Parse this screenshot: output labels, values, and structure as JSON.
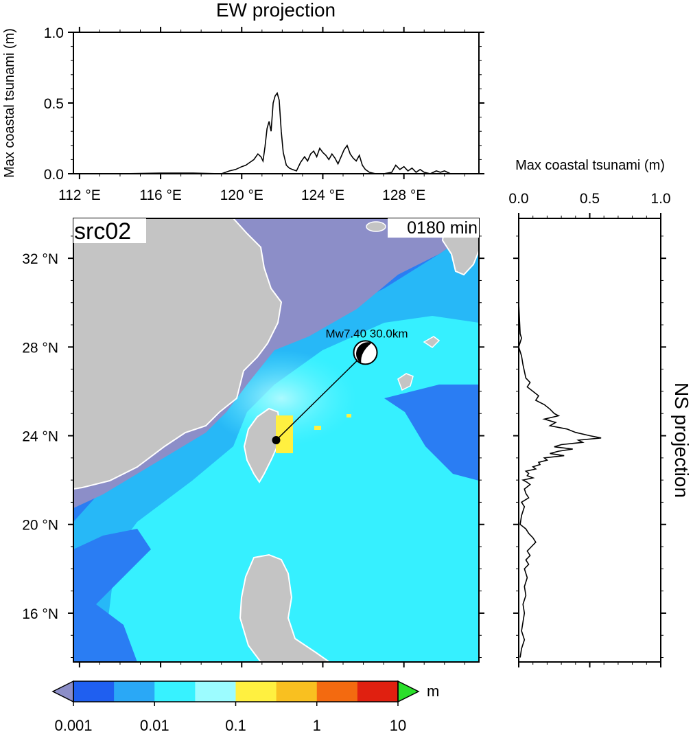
{
  "source_label": "src02",
  "time_label": "0180 min",
  "colorbar": {
    "unit": "m",
    "tick_labels": [
      "0.001",
      "0.01",
      "0.1",
      "1",
      "10"
    ],
    "colors": [
      "#1f5ff0",
      "#2aa8f6",
      "#37f2ff",
      "#9cfcff",
      "#fff040",
      "#f9c020",
      "#f36a10",
      "#e02010"
    ],
    "under_color": "#8c8ec8",
    "over_color": "#2adf2a"
  },
  "event": {
    "label": "Mw7.40  30.0km",
    "epicenter_lon": 121.7,
    "epicenter_lat": 23.8,
    "beachball_lon": 126.1,
    "beachball_lat": 27.75
  },
  "chart_data": [
    {
      "type": "line",
      "title": "EW projection",
      "ylabel": "Max coastal tsunami (m)",
      "xlim": [
        111.7,
        131.7
      ],
      "ylim": [
        0,
        1.0
      ],
      "x_ticks": [
        112,
        116,
        120,
        124,
        128
      ],
      "x_tick_labels": [
        "112 °E",
        "116 °E",
        "120 °E",
        "124 °E",
        "128 °E"
      ],
      "y_ticks": [
        0,
        0.5,
        1.0
      ],
      "y_tick_labels": [
        "0.0",
        "0.5",
        "1.0"
      ],
      "x": [
        111.8,
        114.0,
        116.0,
        117.6,
        119.0,
        119.4,
        119.7,
        120.0,
        120.2,
        120.4,
        120.6,
        120.8,
        120.95,
        121.05,
        121.15,
        121.25,
        121.35,
        121.45,
        121.55,
        121.65,
        121.75,
        121.85,
        121.95,
        122.05,
        122.2,
        122.35,
        122.5,
        122.7,
        122.9,
        123.0,
        123.1,
        123.25,
        123.4,
        123.55,
        123.7,
        123.85,
        124.0,
        124.15,
        124.3,
        124.45,
        124.6,
        124.75,
        124.9,
        125.05,
        125.2,
        125.35,
        125.5,
        125.65,
        125.8,
        125.95,
        126.1,
        126.3,
        126.6,
        127.0,
        127.4,
        127.6,
        127.8,
        128.0,
        128.2,
        128.4,
        128.6,
        128.8,
        129.0,
        129.3,
        129.6,
        129.8,
        130.0,
        130.3,
        130.7,
        131.2
      ],
      "y": [
        0.0,
        0.0,
        0.005,
        0.005,
        0.0,
        0.02,
        0.03,
        0.05,
        0.06,
        0.08,
        0.1,
        0.14,
        0.12,
        0.09,
        0.19,
        0.32,
        0.37,
        0.3,
        0.5,
        0.55,
        0.57,
        0.52,
        0.3,
        0.15,
        0.06,
        0.04,
        0.03,
        0.02,
        0.08,
        0.1,
        0.12,
        0.09,
        0.14,
        0.16,
        0.12,
        0.18,
        0.15,
        0.13,
        0.1,
        0.14,
        0.11,
        0.07,
        0.12,
        0.17,
        0.2,
        0.14,
        0.11,
        0.09,
        0.13,
        0.06,
        0.03,
        0.01,
        0.0,
        0.0,
        0.01,
        0.06,
        0.03,
        0.05,
        0.02,
        0.04,
        0.01,
        0.03,
        0.01,
        0.0,
        0.02,
        0.01,
        0.02,
        0.0,
        0.0,
        0.0
      ]
    },
    {
      "type": "line",
      "title": "NS projection",
      "xlabel": "Max coastal tsunami (m)",
      "xlim": [
        0,
        1.0
      ],
      "ylim": [
        13.8,
        33.8
      ],
      "x_ticks": [
        0,
        0.5,
        1.0
      ],
      "x_tick_labels": [
        "0.0",
        "0.5",
        "1.0"
      ],
      "lat": [
        33.6,
        32.0,
        30.0,
        28.6,
        28.4,
        28.0,
        27.6,
        27.2,
        26.6,
        26.4,
        26.2,
        26.0,
        25.8,
        25.6,
        25.4,
        25.2,
        25.0,
        24.9,
        24.75,
        24.6,
        24.45,
        24.3,
        24.15,
        24.0,
        23.9,
        23.8,
        23.7,
        23.6,
        23.5,
        23.4,
        23.3,
        23.2,
        23.1,
        23.0,
        22.9,
        22.8,
        22.7,
        22.6,
        22.5,
        22.4,
        22.3,
        22.2,
        22.1,
        22.0,
        21.9,
        21.8,
        21.6,
        21.4,
        21.2,
        21.0,
        20.8,
        20.6,
        20.4,
        20.0,
        19.8,
        19.6,
        19.4,
        19.2,
        19.0,
        18.8,
        18.6,
        18.4,
        18.2,
        18.0,
        17.6,
        17.2,
        16.8,
        16.4,
        16.0,
        15.6,
        15.2,
        14.8,
        14.4,
        14.0
      ],
      "y": [
        0.0,
        0.0,
        0.0,
        0.01,
        0.02,
        0.0,
        0.02,
        0.03,
        0.05,
        0.08,
        0.06,
        0.1,
        0.14,
        0.12,
        0.18,
        0.22,
        0.25,
        0.28,
        0.18,
        0.26,
        0.22,
        0.34,
        0.4,
        0.5,
        0.58,
        0.42,
        0.45,
        0.3,
        0.25,
        0.38,
        0.28,
        0.22,
        0.32,
        0.18,
        0.2,
        0.14,
        0.15,
        0.1,
        0.12,
        0.05,
        0.07,
        0.06,
        0.1,
        0.03,
        0.06,
        0.08,
        0.04,
        0.05,
        0.07,
        0.02,
        0.04,
        0.03,
        0.02,
        0.01,
        0.05,
        0.07,
        0.1,
        0.12,
        0.09,
        0.06,
        0.08,
        0.05,
        0.07,
        0.04,
        0.06,
        0.04,
        0.05,
        0.03,
        0.04,
        0.03,
        0.02,
        0.04,
        0.02,
        0.01
      ]
    },
    {
      "type": "heatmap",
      "title": "",
      "xlim": [
        111.7,
        131.7
      ],
      "ylim": [
        13.8,
        33.8
      ],
      "x_ticks": [
        112,
        116,
        120,
        124,
        128
      ],
      "x_tick_labels": [
        "112 °E",
        "116 °E",
        "120 °E",
        "124 °E",
        "128 °E"
      ],
      "y_ticks": [
        16,
        20,
        24,
        28,
        32
      ],
      "y_tick_labels": [
        "16 °N",
        "20 °N",
        "24 °N",
        "28 °N",
        "32 °N"
      ]
    }
  ]
}
